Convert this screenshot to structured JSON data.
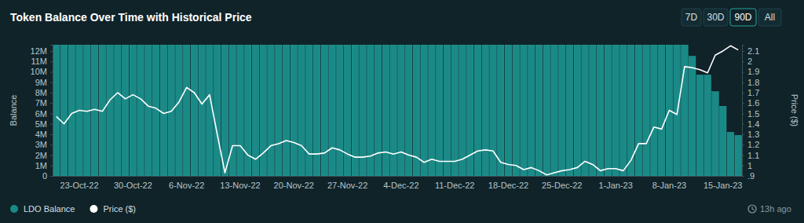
{
  "chart_data": {
    "type": "bar",
    "title": "Token Balance Over Time with Historical Price",
    "buttons": [
      "7D",
      "30D",
      "90D",
      "All"
    ],
    "updated": "13h ago",
    "y_label": "Balance",
    "y2_label": "Price ($)",
    "categories": [
      null,
      null,
      null,
      "23-Oct-22",
      null,
      null,
      null,
      null,
      null,
      null,
      "30-Oct-22",
      null,
      null,
      null,
      null,
      null,
      null,
      "6-Nov-22",
      null,
      null,
      null,
      null,
      null,
      null,
      "13-Nov-22",
      null,
      null,
      null,
      null,
      null,
      null,
      "20-Nov-22",
      null,
      null,
      null,
      null,
      null,
      null,
      "27-Nov-22",
      null,
      null,
      null,
      null,
      null,
      null,
      "4-Dec-22",
      null,
      null,
      null,
      null,
      null,
      null,
      "11-Dec-22",
      null,
      null,
      null,
      null,
      null,
      null,
      "18-Dec-22",
      null,
      null,
      null,
      null,
      null,
      null,
      "25-Dec-22",
      null,
      null,
      null,
      null,
      null,
      null,
      "1-Jan-23",
      null,
      null,
      null,
      null,
      null,
      null,
      "8-Jan-23",
      null,
      null,
      null,
      null,
      null,
      null,
      "15-Jan-23",
      null,
      null
    ],
    "series": [
      {
        "name": "LDO Balance",
        "color": "#1a8a87",
        "type": "bar",
        "values": [
          12600000,
          12600000,
          12600000,
          12600000,
          12600000,
          12600000,
          12600000,
          12600000,
          12600000,
          12600000,
          12600000,
          12600000,
          12600000,
          12600000,
          12600000,
          12600000,
          12600000,
          12600000,
          12600000,
          12600000,
          12600000,
          12600000,
          12600000,
          12600000,
          12600000,
          12600000,
          12600000,
          12600000,
          12600000,
          12600000,
          12600000,
          12600000,
          12600000,
          12600000,
          12600000,
          12600000,
          12600000,
          12600000,
          12600000,
          12600000,
          12600000,
          12600000,
          12600000,
          12600000,
          12600000,
          12600000,
          12600000,
          12600000,
          12600000,
          12600000,
          12600000,
          12600000,
          12600000,
          12600000,
          12600000,
          12600000,
          12600000,
          12600000,
          12600000,
          12600000,
          12600000,
          12600000,
          12600000,
          12600000,
          12600000,
          12600000,
          12600000,
          12600000,
          12600000,
          12600000,
          12600000,
          12600000,
          12600000,
          12600000,
          12600000,
          12600000,
          12600000,
          12600000,
          12600000,
          12600000,
          12600000,
          12600000,
          12600000,
          11500000,
          9700000,
          9700000,
          8100000,
          6700000,
          4200000,
          3900000
        ]
      },
      {
        "name": "Price ($)",
        "color": "#ffffff",
        "type": "line",
        "axis": "y2",
        "values": [
          1.47,
          1.4,
          1.5,
          1.53,
          1.52,
          1.54,
          1.52,
          1.63,
          1.7,
          1.64,
          1.68,
          1.64,
          1.57,
          1.55,
          1.5,
          1.52,
          1.61,
          1.75,
          1.7,
          1.59,
          1.68,
          1.3,
          0.93,
          1.19,
          1.19,
          1.1,
          1.06,
          1.12,
          1.19,
          1.21,
          1.24,
          1.22,
          1.19,
          1.11,
          1.11,
          1.12,
          1.17,
          1.15,
          1.11,
          1.08,
          1.08,
          1.09,
          1.12,
          1.13,
          1.11,
          1.13,
          1.1,
          1.08,
          1.03,
          1.06,
          1.04,
          1.04,
          1.04,
          1.06,
          1.1,
          1.14,
          1.15,
          1.14,
          1.03,
          1.01,
          1.0,
          0.96,
          0.98,
          0.95,
          0.91,
          0.93,
          0.95,
          0.96,
          0.98,
          1.04,
          1.01,
          0.95,
          0.97,
          0.97,
          0.95,
          1.05,
          1.21,
          1.21,
          1.37,
          1.35,
          1.53,
          1.49,
          1.95,
          1.94,
          1.92,
          1.89,
          2.06,
          2.1,
          2.15,
          2.11
        ]
      }
    ],
    "ylim": [
      0,
      12600000
    ],
    "yticks": [
      0,
      {
        "value": 1000000,
        "label": "1M"
      },
      {
        "value": 2000000,
        "label": "2M"
      },
      {
        "value": 3000000,
        "label": "3M"
      },
      {
        "value": 4000000,
        "label": "4M"
      },
      {
        "value": 5000000,
        "label": "5M"
      },
      {
        "value": 6000000,
        "label": "6M"
      },
      {
        "value": 7000000,
        "label": "7M"
      },
      {
        "value": 8000000,
        "label": "8M"
      },
      {
        "value": 9000000,
        "label": "9M"
      },
      {
        "value": 10000000,
        "label": "10M"
      },
      {
        "value": 11000000,
        "label": "11M"
      },
      {
        "value": 12000000,
        "label": "12M"
      }
    ],
    "y2lim": [
      0.9,
      2.16
    ],
    "y2ticks": [
      {
        "value": 0.9,
        "label": ".9"
      },
      1,
      1.1,
      1.2,
      1.3,
      1.4,
      1.5,
      1.6,
      1.7,
      1.8,
      1.9,
      2,
      2.1
    ],
    "grid": false,
    "legend": "bottom-left"
  }
}
